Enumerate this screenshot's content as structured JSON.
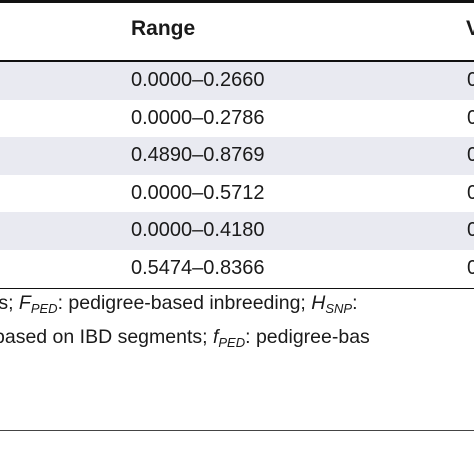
{
  "table": {
    "header": {
      "range": "Range",
      "next_col_partial": "V"
    },
    "rows": [
      {
        "range": "0.0000–0.2660",
        "next_partial": "0"
      },
      {
        "range": "0.0000–0.2786",
        "next_partial": "0"
      },
      {
        "range": "0.4890–0.8769",
        "next_partial": "0"
      },
      {
        "range": "0.0000–0.5712",
        "next_partial": "0"
      },
      {
        "range": "0.0000–0.4180",
        "next_partial": "0"
      },
      {
        "range": "0.5474–0.8366",
        "next_partial": "0"
      }
    ]
  },
  "footnote": {
    "line1": {
      "pre": "ls; ",
      "sym1": "F",
      "sub1": "PED",
      "mid": ": pedigree-based inbreeding; ",
      "sym2": "H",
      "sub2": "SNP",
      "post": ":"
    },
    "line2": {
      "pre": "based on IBD segments; ",
      "sym": "f",
      "sub": "PED",
      "post": ": pedigree-bas"
    }
  }
}
